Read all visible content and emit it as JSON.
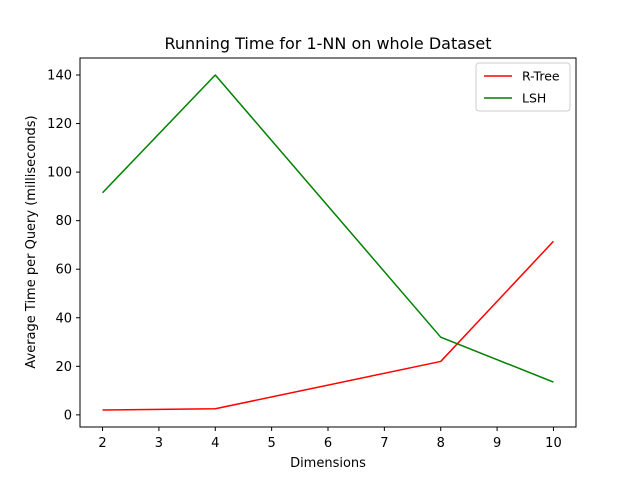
{
  "chart_data": {
    "type": "line",
    "title": "Running Time for 1-NN on whole Dataset",
    "xlabel": "Dimensions",
    "ylabel": "Average Time per Query (milliseconds)",
    "xlim": [
      1.6,
      10.4
    ],
    "ylim": [
      -5,
      147
    ],
    "xticks": [
      2,
      3,
      4,
      5,
      6,
      7,
      8,
      9,
      10
    ],
    "yticks": [
      0,
      20,
      40,
      60,
      80,
      100,
      120,
      140
    ],
    "grid": false,
    "legend_position": "top-right",
    "series": [
      {
        "name": "R-Tree",
        "color": "#ff0000",
        "x": [
          2,
          4,
          8,
          10
        ],
        "y": [
          2,
          2.5,
          22,
          71.5
        ]
      },
      {
        "name": "LSH",
        "color": "#008000",
        "x": [
          2,
          4,
          8,
          10
        ],
        "y": [
          91.5,
          140,
          32,
          13.5
        ]
      }
    ]
  }
}
